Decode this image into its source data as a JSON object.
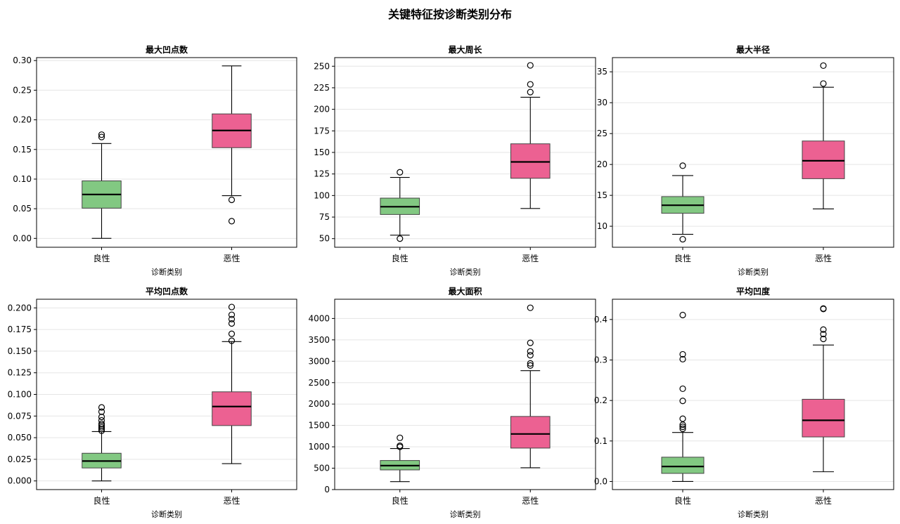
{
  "figure_title": "关键特征按诊断类别分布",
  "colors": {
    "benign": "#82c882",
    "malignant": "#ec6192",
    "median": "#000000",
    "grid": "#e5e5e5"
  },
  "chart_data": [
    {
      "type": "box",
      "title": "最大凹点数",
      "xlabel": "诊断类别",
      "categories": [
        "良性",
        "恶性"
      ],
      "ylim": [
        -0.015,
        0.305
      ],
      "yticks": [
        0.0,
        0.05,
        0.1,
        0.15,
        0.2,
        0.25,
        0.3
      ],
      "ytick_labels": [
        "0.00",
        "0.05",
        "0.10",
        "0.15",
        "0.20",
        "0.25",
        "0.30"
      ],
      "grid": true,
      "boxes": [
        {
          "category": "良性",
          "whisker_low": 0.0,
          "q1": 0.051,
          "median": 0.074,
          "q3": 0.097,
          "whisker_high": 0.16,
          "outliers": [
            0.171,
            0.175
          ]
        },
        {
          "category": "恶性",
          "whisker_low": 0.072,
          "q1": 0.153,
          "median": 0.182,
          "q3": 0.21,
          "whisker_high": 0.291,
          "outliers": [
            0.065,
            0.029
          ]
        }
      ]
    },
    {
      "type": "box",
      "title": "最大周长",
      "xlabel": "诊断类别",
      "categories": [
        "良性",
        "恶性"
      ],
      "ylim": [
        40,
        260
      ],
      "yticks": [
        50,
        75,
        100,
        125,
        150,
        175,
        200,
        225,
        250
      ],
      "ytick_labels": [
        "50",
        "75",
        "100",
        "125",
        "150",
        "175",
        "200",
        "225",
        "250"
      ],
      "grid": true,
      "boxes": [
        {
          "category": "良性",
          "whisker_low": 54,
          "q1": 78,
          "median": 87,
          "q3": 97,
          "whisker_high": 121,
          "outliers": [
            127,
            50
          ]
        },
        {
          "category": "恶性",
          "whisker_low": 85,
          "q1": 120,
          "median": 139,
          "q3": 160,
          "whisker_high": 214,
          "outliers": [
            220,
            229,
            251
          ]
        }
      ]
    },
    {
      "type": "box",
      "title": "最大半径",
      "xlabel": "诊断类别",
      "categories": [
        "良性",
        "恶性"
      ],
      "ylim": [
        6.6,
        37.3
      ],
      "yticks": [
        10,
        15,
        20,
        25,
        30,
        35
      ],
      "ytick_labels": [
        "10",
        "15",
        "20",
        "25",
        "30",
        "35"
      ],
      "grid": true,
      "boxes": [
        {
          "category": "良性",
          "whisker_low": 8.7,
          "q1": 12.1,
          "median": 13.4,
          "q3": 14.8,
          "whisker_high": 18.2,
          "outliers": [
            19.8,
            7.9
          ]
        },
        {
          "category": "恶性",
          "whisker_low": 12.8,
          "q1": 17.7,
          "median": 20.6,
          "q3": 23.8,
          "whisker_high": 32.5,
          "outliers": [
            33.1,
            36.0
          ]
        }
      ]
    },
    {
      "type": "box",
      "title": "平均凹点数",
      "xlabel": "诊断类别",
      "categories": [
        "良性",
        "恶性"
      ],
      "ylim": [
        -0.01,
        0.21
      ],
      "yticks": [
        0.0,
        0.025,
        0.05,
        0.075,
        0.1,
        0.125,
        0.15,
        0.175,
        0.2
      ],
      "ytick_labels": [
        "0.000",
        "0.025",
        "0.050",
        "0.075",
        "0.100",
        "0.125",
        "0.150",
        "0.175",
        "0.200"
      ],
      "grid": true,
      "boxes": [
        {
          "category": "良性",
          "whisker_low": 0.0,
          "q1": 0.015,
          "median": 0.023,
          "q3": 0.032,
          "whisker_high": 0.057,
          "outliers": [
            0.058,
            0.06,
            0.062,
            0.064,
            0.066,
            0.07,
            0.074,
            0.08,
            0.085
          ]
        },
        {
          "category": "恶性",
          "whisker_low": 0.02,
          "q1": 0.064,
          "median": 0.086,
          "q3": 0.103,
          "whisker_high": 0.161,
          "outliers": [
            0.162,
            0.17,
            0.182,
            0.187,
            0.192,
            0.201
          ]
        }
      ]
    },
    {
      "type": "box",
      "title": "最大面积",
      "xlabel": "诊断类别",
      "categories": [
        "良性",
        "恶性"
      ],
      "ylim": [
        0,
        4450
      ],
      "yticks": [
        0,
        500,
        1000,
        1500,
        2000,
        2500,
        3000,
        3500,
        4000
      ],
      "ytick_labels": [
        "0",
        "500",
        "1000",
        "1500",
        "2000",
        "2500",
        "3000",
        "3500",
        "4000"
      ],
      "grid": true,
      "boxes": [
        {
          "category": "良性",
          "whisker_low": 185,
          "q1": 460,
          "median": 560,
          "q3": 680,
          "whisker_high": 960,
          "outliers": [
            1000,
            1025,
            1210
          ]
        },
        {
          "category": "恶性",
          "whisker_low": 510,
          "q1": 970,
          "median": 1300,
          "q3": 1710,
          "whisker_high": 2780,
          "outliers": [
            2900,
            2950,
            3140,
            3230,
            3430,
            4250
          ]
        }
      ]
    },
    {
      "type": "box",
      "title": "平均凹度",
      "xlabel": "诊断类别",
      "categories": [
        "良性",
        "恶性"
      ],
      "ylim": [
        -0.02,
        0.45
      ],
      "yticks": [
        0.0,
        0.1,
        0.2,
        0.3,
        0.4
      ],
      "ytick_labels": [
        "0.0",
        "0.1",
        "0.2",
        "0.3",
        "0.4"
      ],
      "grid": true,
      "boxes": [
        {
          "category": "良性",
          "whisker_low": 0.0,
          "q1": 0.02,
          "median": 0.037,
          "q3": 0.06,
          "whisker_high": 0.121,
          "outliers": [
            0.13,
            0.135,
            0.14,
            0.155,
            0.199,
            0.229,
            0.302,
            0.314,
            0.411
          ]
        },
        {
          "category": "恶性",
          "whisker_low": 0.024,
          "q1": 0.11,
          "median": 0.151,
          "q3": 0.203,
          "whisker_high": 0.337,
          "outliers": [
            0.352,
            0.364,
            0.375,
            0.426,
            0.427
          ]
        }
      ]
    }
  ]
}
